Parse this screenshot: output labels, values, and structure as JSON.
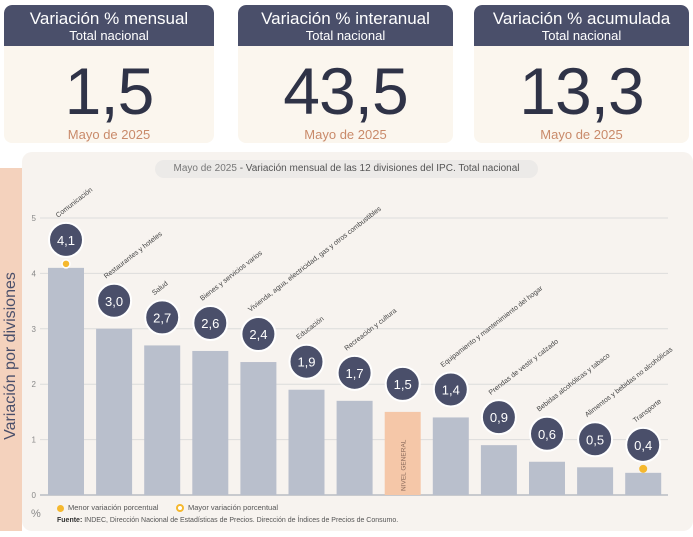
{
  "cards": [
    {
      "title": "Variación % mensual",
      "subtitle": "Total nacional",
      "value": "1,5",
      "date": "Mayo de 2025"
    },
    {
      "title": "Variación % interanual",
      "subtitle": "Total nacional",
      "value": "43,5",
      "date": "Mayo de 2025"
    },
    {
      "title": "Variación % acumulada",
      "subtitle": "Total nacional",
      "value": "13,3",
      "date": "Mayo de 2025"
    }
  ],
  "chart_data": {
    "type": "bar",
    "title_date": "Mayo de 2025",
    "title": "- Variación mensual de las 12 divisiones del IPC. Total nacional",
    "ylabel": "Variación por divisiones",
    "yunit": "%",
    "ylim": [
      0,
      5
    ],
    "yticks": [
      "0",
      "1",
      "2",
      "3",
      "4",
      "5"
    ],
    "grid": true,
    "categories": [
      "Comunicación",
      "Restaurantes y hoteles",
      "Salud",
      "Bienes y servicios varios",
      "Vivienda, agua, electricidad, gas y otros combustibles",
      "Educación",
      "Recreación y cultura",
      "NIVEL GENERAL",
      "Equipamiento y mantenimiento del hogar",
      "Prendas de vestir y calzado",
      "Bebidas alcohólicas y tabaco",
      "Alimentos y bebidas no alcohólicas",
      "Transporte"
    ],
    "values": [
      4.1,
      3.0,
      2.7,
      2.6,
      2.4,
      1.9,
      1.7,
      1.5,
      1.4,
      0.9,
      0.6,
      0.5,
      0.4
    ],
    "value_labels": [
      "4,1",
      "3,0",
      "2,7",
      "2,6",
      "2,4",
      "1,9",
      "1,7",
      "1,5",
      "1,4",
      "0,9",
      "0,6",
      "0,5",
      "0,4"
    ],
    "highlight": "NIVEL GENERAL",
    "max_marker": "Comunicación",
    "min_marker": "Transporte",
    "colors": {
      "bar": "#b9bfcc",
      "general": "#f5c7a8",
      "bubble": "#4a4f6a",
      "marker": "#f5b82e"
    }
  },
  "legend": {
    "min": "Menor variación porcentual",
    "max": "Mayor variación porcentual"
  },
  "source": {
    "label": "Fuente:",
    "text": "INDEC, Dirección Nacional de Estadísticas de Precios. Dirección de Índices de Precios de Consumo."
  }
}
